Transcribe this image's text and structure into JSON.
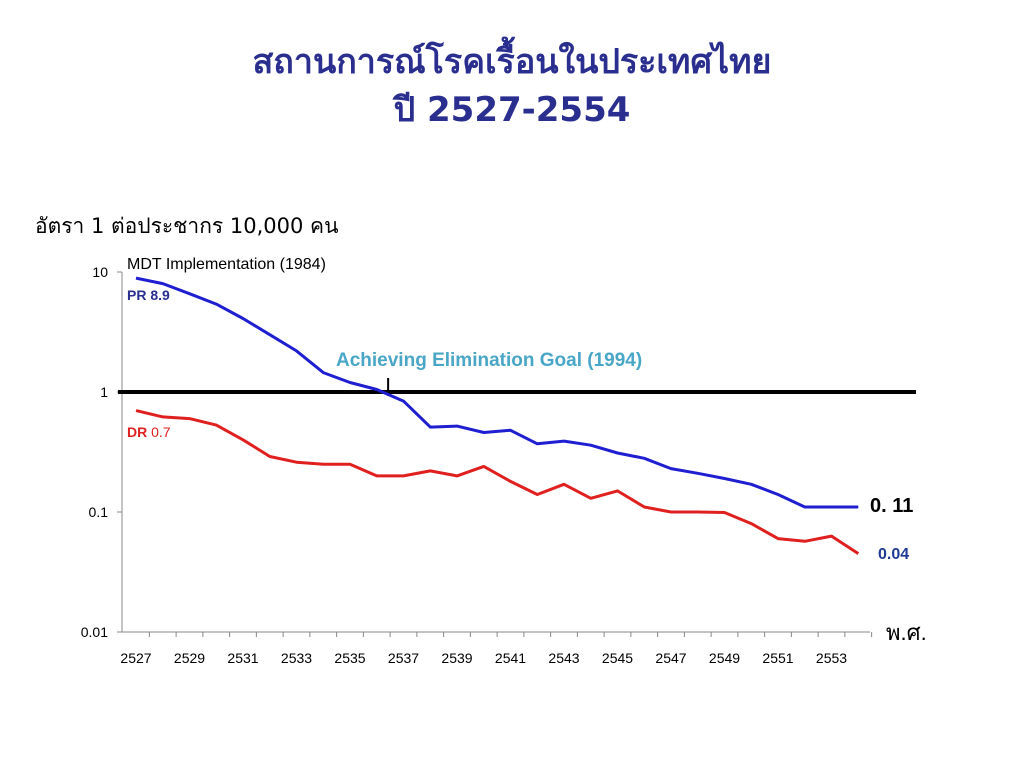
{
  "slide": {
    "title_line1": "สถานการณ์โรคเรื้อนในประเทศไทย",
    "title_line2": "ปี 2527-2554",
    "rate_label": "อัตรา 1 ต่อประชากร 10,000 คน"
  },
  "chart_data": {
    "type": "line",
    "title": "สถานการณ์โรคเรื้อนในประเทศไทย ปี 2527-2554",
    "ylabel": "อัตรา 1 ต่อประชากร 10,000 คน",
    "xlabel": "พ.ศ.",
    "yscale": "log",
    "ylim": [
      0.01,
      10
    ],
    "y_ticks": [
      "10",
      "1",
      "0.1",
      "0.01"
    ],
    "y_tick_values": [
      10,
      1,
      0.1,
      0.01
    ],
    "x_tick_labels": [
      "2527",
      "2529",
      "2531",
      "2533",
      "2535",
      "2537",
      "2539",
      "2541",
      "2543",
      "2545",
      "2547",
      "2549",
      "2551",
      "2553"
    ],
    "x_tick_values": [
      2527,
      2529,
      2531,
      2533,
      2535,
      2537,
      2539,
      2541,
      2543,
      2545,
      2547,
      2549,
      2551,
      2553
    ],
    "x": [
      2527,
      2528,
      2529,
      2530,
      2531,
      2532,
      2533,
      2534,
      2535,
      2536,
      2537,
      2538,
      2539,
      2540,
      2541,
      2542,
      2543,
      2544,
      2545,
      2546,
      2547,
      2548,
      2549,
      2550,
      2551,
      2552,
      2553,
      2554
    ],
    "grid": false,
    "series": [
      {
        "name": "PR",
        "label_value": "8.9",
        "end_label": "0. 11",
        "color": "#1f1fd1",
        "values": [
          8.9,
          8.0,
          6.6,
          5.4,
          4.1,
          3.0,
          2.2,
          1.45,
          1.2,
          1.05,
          0.84,
          0.51,
          0.52,
          0.46,
          0.48,
          0.37,
          0.39,
          0.36,
          0.31,
          0.28,
          0.23,
          0.21,
          0.19,
          0.17,
          0.14,
          0.11,
          0.11,
          0.11
        ]
      },
      {
        "name": "DR",
        "label_value": "0.7",
        "end_label": "0.04",
        "color": "#e0201f",
        "values": [
          0.7,
          0.62,
          0.6,
          0.53,
          0.4,
          0.29,
          0.26,
          0.25,
          0.25,
          0.2,
          0.2,
          0.22,
          0.2,
          0.24,
          0.18,
          0.14,
          0.17,
          0.13,
          0.15,
          0.11,
          0.1,
          0.1,
          0.099,
          0.08,
          0.06,
          0.057,
          0.063,
          0.045
        ]
      }
    ],
    "reference_line": {
      "y": 1,
      "color": "#000000"
    },
    "annotations": [
      {
        "text": "MDT Implementation (1984)",
        "color": "#000000"
      },
      {
        "text": "Achieving  Elimination Goal (1994)",
        "color": "#4aa6c7",
        "x": 2536.5
      }
    ],
    "colors": {
      "title": "#2a2e8f",
      "pr_label": "#2a2e8f",
      "dr_label_name": "#e0201f",
      "dr_label_value": "#e0201f",
      "end_pr": "#000000",
      "end_dr": "#1f3a93"
    }
  }
}
